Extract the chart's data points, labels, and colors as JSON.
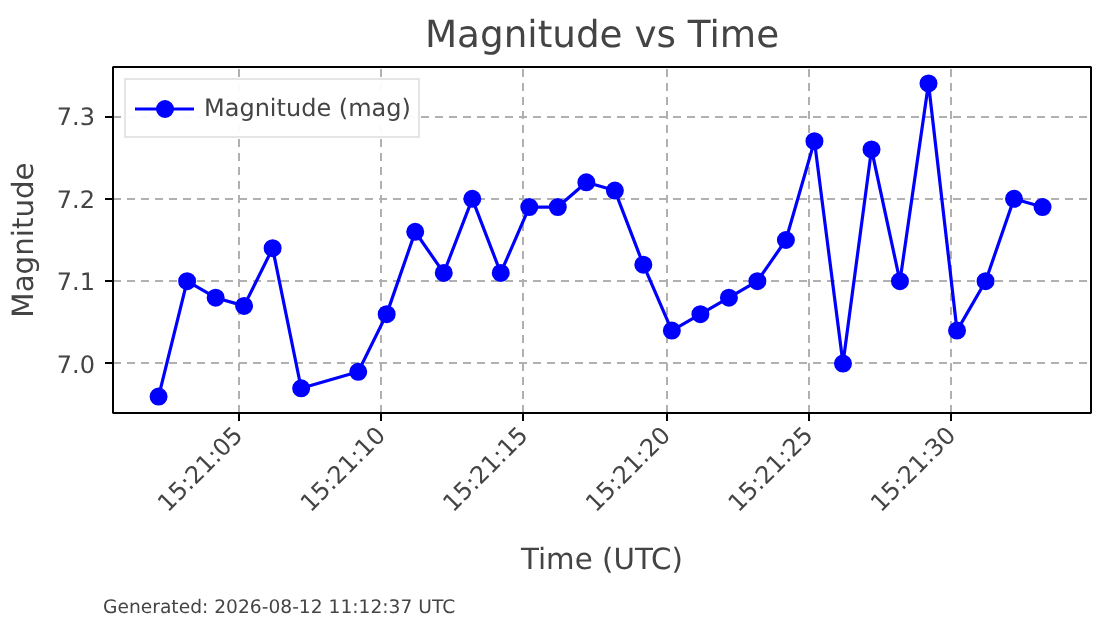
{
  "chart_data": {
    "type": "line",
    "title": "Magnitude vs Time",
    "xlabel": "Time (UTC)",
    "ylabel": "Magnitude",
    "annotations": [
      "Generated: 2026-08-12 11:12:37 UTC"
    ],
    "x": [
      15.350611,
      15.350889,
      15.351167,
      15.351444,
      15.351722,
      15.352,
      15.352556,
      15.352833,
      15.353111,
      15.353389,
      15.353667,
      15.353944,
      15.354222,
      15.3545,
      15.354778,
      15.355056,
      15.355333,
      15.355611,
      15.355889,
      15.356167,
      15.356444,
      15.356722,
      15.357,
      15.357278,
      15.357556,
      15.357833,
      15.358111,
      15.358389,
      15.358667,
      15.358944,
      15.359222
    ],
    "series": [
      {
        "name": "Magnitude (mag)",
        "color": "#0000ff",
        "values": [
          6.96,
          7.1,
          7.08,
          7.07,
          7.14,
          6.97,
          6.99,
          7.06,
          7.16,
          7.11,
          7.2,
          7.11,
          7.19,
          7.19,
          7.22,
          7.21,
          7.12,
          7.04,
          7.06,
          7.08,
          7.1,
          7.15,
          7.27,
          7.0,
          7.26,
          7.1,
          7.34,
          7.04,
          7.1,
          7.2,
          7.19
        ]
      }
    ],
    "xlim": [
      15.350167,
      15.359694
    ],
    "xticks": [
      {
        "value": 15.351389,
        "label": "15:21:05"
      },
      {
        "value": 15.352778,
        "label": "15:21:10"
      },
      {
        "value": 15.354167,
        "label": "15:21:15"
      },
      {
        "value": 15.355556,
        "label": "15:21:20"
      },
      {
        "value": 15.356944,
        "label": "15:21:25"
      },
      {
        "value": 15.358333,
        "label": "15:21:30"
      }
    ],
    "ylim": [
      6.94,
      7.36
    ],
    "yticks": [
      {
        "value": 7.0,
        "label": "7.0"
      },
      7.1,
      7.2,
      7.3
    ],
    "grid": true,
    "legend": "top left",
    "marker": "circle",
    "line_style": "solid"
  }
}
